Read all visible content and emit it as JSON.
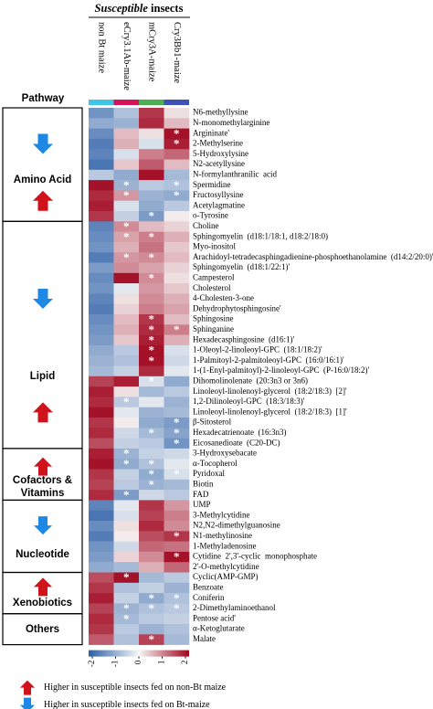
{
  "chart_data": {
    "type": "heatmap",
    "title_emphasis": "Susceptible",
    "title_rest": "insects",
    "pathway_header": "Pathway",
    "columns": [
      "non Bt maize",
      "eCry3.1Ab-maize",
      "mCry3A-maize",
      "Cry3Bb1-maize"
    ],
    "column_colors": [
      "#3fc6e6",
      "#d4145a",
      "#4caf50",
      "#3f51b5"
    ],
    "rows": [
      "N6-methyllysine",
      "N-monomethylarginine",
      "Argininate'",
      "2-Methylserine",
      "5-Hydroxylysine",
      "N2-acetyllysine",
      "N-formylanthranilic  acid",
      "Spermidine",
      "Fructosyllysine",
      "Acetylagmatine",
      "o-Tyrosine",
      "Choline",
      "Sphingomyelin  (d18:1/18:1, d18:2/18:0)",
      "Myo-inositol",
      "Arachidoyl-tetradecasphingadienine-phosphoethanolamine  (d14:2/20:0)'",
      "Sphingomyelin  (d18:1/22:1)'",
      "Campesterol",
      "Cholesterol",
      "4-Cholesten-3-one",
      "Dehydrophytosphingosine'",
      "Sphingosine",
      "Sphinganine",
      "Hexadecasphingosine  (d16:1)'",
      "1-Oleoyl-2-linoleoyl-GPC  (18:1/18:2)'",
      "1-Palmitoyl-2-palmitoleoyl-GPC  (16:0/16:1)'",
      "1-(1-Enyl-palmitoyl)-2-linoleoyl-GPC  (P-16:0/18:2)'",
      "Dihomolinolenate  (20:3n3 or 3n6)",
      "Linoleoyl-linolenoyl-glycerol  (18:2/18:3)  [2]'",
      "1,2-Dilinoleoyl-GPC  (18:3/18:3)'",
      "Linoleoyl-linolenoyl-glycerol  (18:2/18:3)  [1]'",
      "β-Sitosterol",
      "Hexadecatrienoate  (16:3n3)",
      "Eicosanedioate  (C20-DC)",
      "3-Hydroxysebacate",
      "α-Tocopherol",
      "Pyridoxal",
      "Biotin",
      "FAD",
      "UMP",
      "3-Methylcytidine",
      "N2,N2-dimethylguanosine",
      "N1-methylinosine",
      "1-Methyladenosine",
      "Cytidine  2',3'-cyclic  monophosphate",
      "2'-O-methylcytidine",
      "Cyclic(AMP-GMP)",
      "Benzoate",
      "Coniferin",
      "2-Dimethylaminoethanol",
      "Pentose acid'",
      "α-Ketoglutarate",
      "Malate"
    ],
    "values": [
      [
        -1.3,
        -0.7,
        1.6,
        0.2
      ],
      [
        -1.0,
        -0.9,
        1.7,
        0.5
      ],
      [
        -1.4,
        0.5,
        0.2,
        1.9
      ],
      [
        -1.6,
        0.6,
        -0.3,
        1.8
      ],
      [
        -1.5,
        -0.3,
        1.0,
        1.2
      ],
      [
        -1.7,
        0.4,
        1.3,
        0.5
      ],
      [
        -0.6,
        -1.0,
        1.9,
        -0.8
      ],
      [
        1.9,
        -0.9,
        -0.6,
        -0.7
      ],
      [
        1.7,
        0.8,
        -0.9,
        -1.0
      ],
      [
        1.8,
        -0.3,
        -1.0,
        -0.6
      ],
      [
        1.6,
        -0.5,
        -1.2,
        0.1
      ],
      [
        -1.5,
        0.9,
        0.5,
        0.3
      ],
      [
        -1.4,
        0.7,
        1.0,
        0.6
      ],
      [
        -1.3,
        0.6,
        1.1,
        0.4
      ],
      [
        -1.6,
        0.8,
        0.9,
        0.5
      ],
      [
        -1.2,
        0.9,
        0.7,
        0.3
      ],
      [
        -1.4,
        1.9,
        0.9,
        0.2
      ],
      [
        -1.3,
        -0.2,
        0.8,
        0.4
      ],
      [
        -1.5,
        0.2,
        0.9,
        0.6
      ],
      [
        -1.6,
        0.3,
        1.0,
        0.7
      ],
      [
        -1.4,
        0.5,
        1.6,
        0.5
      ],
      [
        -1.3,
        0.6,
        1.7,
        1.0
      ],
      [
        -1.2,
        0.4,
        1.8,
        0.6
      ],
      [
        -1.0,
        -0.6,
        1.9,
        -0.3
      ],
      [
        -0.9,
        -0.7,
        1.9,
        -0.4
      ],
      [
        -0.8,
        -0.5,
        1.7,
        -0.2
      ],
      [
        1.5,
        1.8,
        -0.3,
        -1.0
      ],
      [
        1.8,
        0.2,
        -0.8,
        -0.6
      ],
      [
        1.7,
        -0.6,
        -0.2,
        -0.9
      ],
      [
        1.9,
        -0.2,
        -0.9,
        -0.8
      ],
      [
        1.6,
        0.1,
        -1.0,
        -1.2
      ],
      [
        1.7,
        -0.4,
        -0.8,
        -1.1
      ],
      [
        1.4,
        -0.5,
        -0.6,
        -1.3
      ],
      [
        1.8,
        -0.9,
        -0.5,
        -0.4
      ],
      [
        1.9,
        -1.0,
        -0.7,
        -0.2
      ],
      [
        1.6,
        -0.5,
        -1.0,
        -0.3
      ],
      [
        1.5,
        -0.6,
        -0.9,
        -0.8
      ],
      [
        1.7,
        -1.2,
        -0.4,
        -0.6
      ],
      [
        -1.5,
        -0.2,
        1.6,
        0.8
      ],
      [
        -1.7,
        -0.3,
        1.5,
        1.0
      ],
      [
        -1.4,
        0.2,
        1.7,
        0.9
      ],
      [
        -1.6,
        0.1,
        1.4,
        1.6
      ],
      [
        -1.3,
        -0.4,
        1.2,
        1.1
      ],
      [
        -1.2,
        0.3,
        0.9,
        1.9
      ],
      [
        -1.0,
        -0.8,
        0.6,
        1.2
      ],
      [
        1.4,
        1.9,
        -0.8,
        -0.6
      ],
      [
        1.6,
        -0.7,
        -0.5,
        -0.9
      ],
      [
        1.8,
        -0.5,
        -1.0,
        -0.7
      ],
      [
        1.5,
        -0.9,
        -0.7,
        -0.6
      ],
      [
        1.7,
        -0.8,
        -0.6,
        -0.5
      ],
      [
        1.6,
        -0.6,
        -0.9,
        -0.7
      ],
      [
        1.3,
        -0.7,
        1.5,
        -0.8
      ]
    ],
    "significance_mark": "*",
    "significant": [
      [
        2,
        3
      ],
      [
        3,
        3
      ],
      [
        7,
        1
      ],
      [
        7,
        3
      ],
      [
        8,
        1
      ],
      [
        8,
        3
      ],
      [
        10,
        2
      ],
      [
        11,
        1
      ],
      [
        12,
        1
      ],
      [
        12,
        2
      ],
      [
        14,
        1
      ],
      [
        14,
        2
      ],
      [
        16,
        2
      ],
      [
        20,
        2
      ],
      [
        21,
        2
      ],
      [
        21,
        3
      ],
      [
        22,
        2
      ],
      [
        23,
        2
      ],
      [
        24,
        2
      ],
      [
        26,
        2
      ],
      [
        28,
        1
      ],
      [
        30,
        3
      ],
      [
        31,
        2
      ],
      [
        31,
        3
      ],
      [
        32,
        3
      ],
      [
        33,
        1
      ],
      [
        34,
        1
      ],
      [
        34,
        2
      ],
      [
        35,
        2
      ],
      [
        35,
        3
      ],
      [
        36,
        2
      ],
      [
        37,
        1
      ],
      [
        41,
        3
      ],
      [
        43,
        3
      ],
      [
        45,
        1
      ],
      [
        47,
        2
      ],
      [
        47,
        3
      ],
      [
        48,
        1
      ],
      [
        48,
        2
      ],
      [
        48,
        3
      ],
      [
        49,
        1
      ],
      [
        51,
        2
      ]
    ],
    "pathways": [
      {
        "name": "Amino Acid",
        "size": 11,
        "trends": [
          {
            "direction": "down",
            "size": 7
          },
          {
            "direction": "up",
            "size": 4
          }
        ]
      },
      {
        "name": "Lipid",
        "size": 22,
        "trends": [
          {
            "direction": "down",
            "size": 15
          },
          {
            "direction": "up",
            "size": 7
          }
        ]
      },
      {
        "name": "Cofactors & Vitamins",
        "size": 5,
        "trends": [
          {
            "direction": "up",
            "size": 5
          }
        ]
      },
      {
        "name": "Nucleotide",
        "size": 7,
        "trends": [
          {
            "direction": "down",
            "size": 7
          }
        ]
      },
      {
        "name": "Xenobiotics",
        "size": 4,
        "trends": [
          {
            "direction": "up",
            "size": 4
          }
        ]
      },
      {
        "name": "Others",
        "size": 3,
        "trends": []
      }
    ],
    "arrow_colors": {
      "up": "#d0121b",
      "down": "#1e88e5"
    },
    "colors": [
      "#2b5ea7",
      "#f7f7f7",
      "#a0061f"
    ],
    "zlim": [
      -2,
      2
    ],
    "zticks": [
      -2,
      -1,
      0,
      1,
      2
    ],
    "legend": [
      {
        "direction": "up",
        "label": "Higher in susceptible insects fed on non-Bt maize"
      },
      {
        "direction": "down",
        "label": "Higher in susceptible insects fed on Bt-maize"
      }
    ]
  }
}
